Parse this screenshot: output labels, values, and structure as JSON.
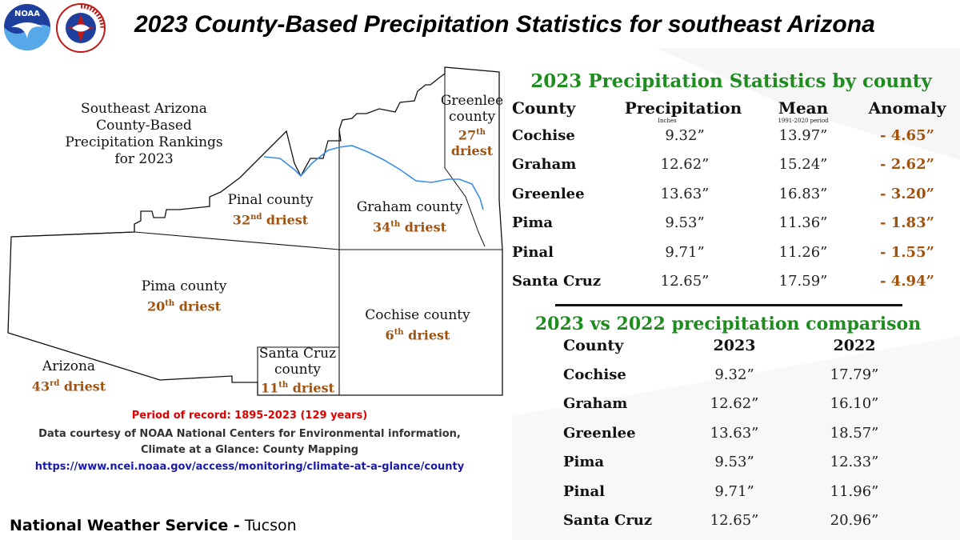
{
  "header": {
    "title": "2023 County-Based Precipitation Statistics for southeast Arizona",
    "noaa_logo_text": "NOAA",
    "nws_logo_text": "NATIONAL WEATHER SERVICE"
  },
  "map": {
    "heading_lines": [
      "Southeast Arizona",
      "County-Based",
      "Precipitation Rankings",
      "for 2023"
    ],
    "counties": [
      {
        "name": "Greenlee",
        "line1": "Greenlee",
        "line2": "county",
        "rank_num": "27",
        "rank_suffix": "th",
        "rank_word": "driest"
      },
      {
        "name": "Pinal",
        "line1": "Pinal county",
        "rank_num": "32",
        "rank_suffix": "nd",
        "rank_word": "driest"
      },
      {
        "name": "Graham",
        "line1": "Graham county",
        "rank_num": "34",
        "rank_suffix": "th",
        "rank_word": "driest"
      },
      {
        "name": "Pima",
        "line1": "Pima county",
        "rank_num": "20",
        "rank_suffix": "th",
        "rank_word": "driest"
      },
      {
        "name": "Cochise",
        "line1": "Cochise county",
        "rank_num": "6",
        "rank_suffix": "th",
        "rank_word": "driest"
      },
      {
        "name": "Santa Cruz",
        "line1": "Santa Cruz",
        "line2": "county",
        "rank_num": "11",
        "rank_suffix": "th",
        "rank_word": "driest"
      },
      {
        "name": "Arizona",
        "line1": "Arizona",
        "rank_num": "43",
        "rank_suffix": "rd",
        "rank_word": "driest"
      }
    ]
  },
  "footer": {
    "period": "Period of record: 1895-2023 (129 years)",
    "courtesy_line1": "Data courtesy of NOAA National Centers for Environmental information,",
    "courtesy_line2": "Climate at a Glance: County Mapping",
    "url": "https://www.ncei.noaa.gov/access/monitoring/climate-at-a-glance/county",
    "nws_bold": "National Weather Service -",
    "nws_office": "Tucson"
  },
  "stats_table": {
    "title": "2023 Precipitation Statistics by county",
    "headers": {
      "county": "County",
      "precip": "Precipitation",
      "precip_sub": "Inches",
      "mean": "Mean",
      "mean_sub": "1991-2020 period",
      "anomaly": "Anomaly"
    },
    "rows": [
      {
        "county": "Cochise",
        "precip": "9.32”",
        "mean": "13.97”",
        "anomaly": "- 4.65”"
      },
      {
        "county": "Graham",
        "precip": "12.62”",
        "mean": "15.24”",
        "anomaly": "- 2.62”"
      },
      {
        "county": "Greenlee",
        "precip": "13.63”",
        "mean": "16.83”",
        "anomaly": "- 3.20”"
      },
      {
        "county": "Pima",
        "precip": "9.53”",
        "mean": "11.36”",
        "anomaly": "- 1.83”"
      },
      {
        "county": "Pinal",
        "precip": "9.71”",
        "mean": "11.26”",
        "anomaly": "- 1.55”"
      },
      {
        "county": "Santa Cruz",
        "precip": "12.65”",
        "mean": "17.59”",
        "anomaly": "- 4.94”"
      }
    ]
  },
  "compare_table": {
    "title": "2023 vs 2022 precipitation comparison",
    "headers": {
      "county": "County",
      "y2023": "2023",
      "y2022": "2022"
    },
    "rows": [
      {
        "county": "Cochise",
        "y2023": "9.32”",
        "y2022": "17.79”"
      },
      {
        "county": "Graham",
        "y2023": "12.62”",
        "y2022": "16.10”"
      },
      {
        "county": "Greenlee",
        "y2023": "13.63”",
        "y2022": "18.57”"
      },
      {
        "county": "Pima",
        "y2023": "9.53”",
        "y2022": "12.33”"
      },
      {
        "county": "Pinal",
        "y2023": "9.71”",
        "y2022": "11.96”"
      },
      {
        "county": "Santa Cruz",
        "y2023": "12.65”",
        "y2022": "20.96”"
      }
    ]
  },
  "colors": {
    "green": "#1e8c1e",
    "rank_brown": "#a0520f",
    "period_red": "#e00000",
    "url_blue": "#1a1aa6",
    "river_blue": "#3a8ee6"
  }
}
